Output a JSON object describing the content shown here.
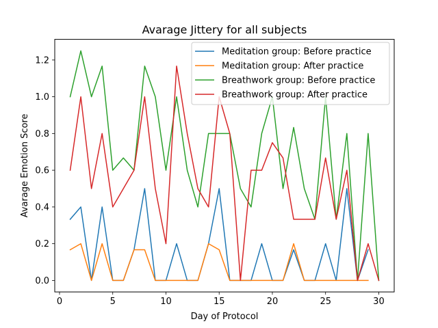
{
  "chart_data": {
    "type": "line",
    "title": "Avarage Jittery for all subjects",
    "xlabel": "Day of Protocol",
    "ylabel": "Avarage Emotion Score",
    "xlim": [
      -0.45,
      31.45
    ],
    "ylim": [
      -0.0625,
      1.3125
    ],
    "xticks": [
      0,
      5,
      10,
      15,
      20,
      25,
      30
    ],
    "yticks": [
      0.0,
      0.2,
      0.4,
      0.6,
      0.8,
      1.0,
      1.2
    ],
    "xtick_labels": [
      "0",
      "5",
      "10",
      "15",
      "20",
      "25",
      "30"
    ],
    "ytick_labels": [
      "0.0",
      "0.2",
      "0.4",
      "0.6",
      "0.8",
      "1.0",
      "1.2"
    ],
    "grid": false,
    "legend_position": "upper-right",
    "series": [
      {
        "name": "Meditation group: Before practice",
        "color": "#1f77b4",
        "x": [
          1,
          2,
          3,
          4,
          5,
          6,
          7,
          8,
          9,
          10,
          11,
          12,
          13,
          14,
          15,
          16,
          17,
          18,
          19,
          20,
          21,
          22,
          23,
          24,
          25,
          26,
          27,
          28,
          29
        ],
        "values": [
          0.333,
          0.4,
          0,
          0.4,
          0,
          0,
          0.167,
          0.5,
          0,
          0,
          0.2,
          0,
          0,
          0.2,
          0.5,
          0,
          0,
          0,
          0.2,
          0,
          0,
          0.167,
          0,
          0,
          0.2,
          0,
          0.5,
          0,
          0.167
        ]
      },
      {
        "name": "Meditation group: After practice",
        "color": "#ff7f0e",
        "x": [
          1,
          2,
          3,
          4,
          5,
          6,
          7,
          8,
          9,
          10,
          11,
          12,
          13,
          14,
          15,
          16,
          17,
          18,
          19,
          20,
          21,
          22,
          23,
          24,
          25,
          26,
          27,
          28,
          29
        ],
        "values": [
          0.167,
          0.2,
          0,
          0.2,
          0,
          0,
          0.167,
          0.167,
          0,
          0,
          0,
          0,
          0,
          0.2,
          0.167,
          0,
          0,
          0,
          0,
          0,
          0,
          0.2,
          0,
          0,
          0,
          0,
          0,
          0,
          0
        ]
      },
      {
        "name": "Breathwork group: Before practice",
        "color": "#2ca02c",
        "x": [
          1,
          2,
          3,
          4,
          5,
          6,
          7,
          8,
          9,
          10,
          11,
          12,
          13,
          14,
          15,
          16,
          17,
          18,
          19,
          20,
          21,
          22,
          23,
          24,
          25,
          26,
          27,
          28,
          29,
          30
        ],
        "values": [
          1.0,
          1.25,
          1.0,
          1.167,
          0.6,
          0.667,
          0.6,
          1.167,
          1.0,
          0.6,
          1.0,
          0.6,
          0.4,
          0.8,
          0.8,
          0.8,
          0.5,
          0.4,
          0.8,
          1.0,
          0.5,
          0.833,
          0.5,
          0.333,
          1.0,
          0.333,
          0.8,
          0,
          0.8,
          0
        ]
      },
      {
        "name": "Breathwork group: After practice",
        "color": "#d62728",
        "x": [
          1,
          2,
          3,
          4,
          5,
          6,
          7,
          8,
          9,
          10,
          11,
          12,
          13,
          14,
          15,
          16,
          17,
          18,
          19,
          20,
          21,
          22,
          23,
          24,
          25,
          26,
          27,
          28,
          29,
          30
        ],
        "values": [
          0.6,
          1.0,
          0.5,
          0.8,
          0.4,
          0.5,
          0.6,
          1.0,
          0.5,
          0.2,
          1.167,
          0.8,
          0.5,
          0.4,
          1.0,
          0.8,
          0,
          0.6,
          0.6,
          0.75,
          0.667,
          0.333,
          0.333,
          0.333,
          0.667,
          0.333,
          0.6,
          0,
          0.2,
          0
        ]
      }
    ]
  }
}
